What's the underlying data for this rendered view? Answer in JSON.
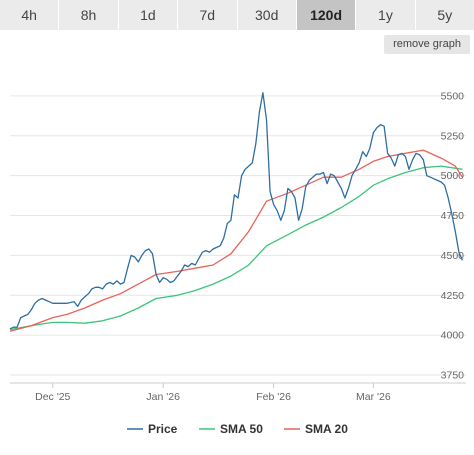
{
  "timeframes": [
    {
      "label": "4h",
      "active": false
    },
    {
      "label": "8h",
      "active": false
    },
    {
      "label": "1d",
      "active": false
    },
    {
      "label": "7d",
      "active": false
    },
    {
      "label": "30d",
      "active": false
    },
    {
      "label": "120d",
      "active": true
    },
    {
      "label": "1y",
      "active": false
    },
    {
      "label": "5y",
      "active": false
    }
  ],
  "remove_graph_label": "remove graph",
  "chart_data": {
    "type": "line",
    "title": "",
    "xlabel": "",
    "ylabel": "",
    "x_range": [
      "2025-11-19",
      "2026-03-27"
    ],
    "ylim": [
      3700,
      5700
    ],
    "y_ticks": [
      3750,
      4000,
      4250,
      4500,
      4750,
      5000,
      5250,
      5500
    ],
    "x_ticks": [
      {
        "date": "2025-12-01",
        "label": "Dec '25"
      },
      {
        "date": "2026-01-01",
        "label": "Jan '26"
      },
      {
        "date": "2026-02-01",
        "label": "Feb '26"
      },
      {
        "date": "2026-03-01",
        "label": "Mar '26"
      }
    ],
    "grid": {
      "horizontal": true,
      "vertical": false
    },
    "legend_position": "bottom-center",
    "series": [
      {
        "name": "Price",
        "color": "#2f6ea0",
        "points": [
          [
            "2025-11-19",
            4040
          ],
          [
            "2025-11-20",
            4050
          ],
          [
            "2025-11-21",
            4050
          ],
          [
            "2025-11-22",
            4110
          ],
          [
            "2025-11-23",
            4120
          ],
          [
            "2025-11-24",
            4130
          ],
          [
            "2025-11-25",
            4160
          ],
          [
            "2025-11-26",
            4200
          ],
          [
            "2025-11-27",
            4220
          ],
          [
            "2025-11-28",
            4230
          ],
          [
            "2025-11-29",
            4220
          ],
          [
            "2025-11-30",
            4210
          ],
          [
            "2025-12-01",
            4200
          ],
          [
            "2025-12-03",
            4200
          ],
          [
            "2025-12-05",
            4200
          ],
          [
            "2025-12-07",
            4210
          ],
          [
            "2025-12-08",
            4180
          ],
          [
            "2025-12-09",
            4220
          ],
          [
            "2025-12-10",
            4240
          ],
          [
            "2025-12-11",
            4260
          ],
          [
            "2025-12-12",
            4290
          ],
          [
            "2025-12-13",
            4300
          ],
          [
            "2025-12-14",
            4300
          ],
          [
            "2025-12-15",
            4290
          ],
          [
            "2025-12-16",
            4320
          ],
          [
            "2025-12-17",
            4330
          ],
          [
            "2025-12-18",
            4320
          ],
          [
            "2025-12-19",
            4340
          ],
          [
            "2025-12-20",
            4320
          ],
          [
            "2025-12-21",
            4330
          ],
          [
            "2025-12-22",
            4420
          ],
          [
            "2025-12-23",
            4500
          ],
          [
            "2025-12-24",
            4490
          ],
          [
            "2025-12-25",
            4460
          ],
          [
            "2025-12-26",
            4500
          ],
          [
            "2025-12-27",
            4530
          ],
          [
            "2025-12-28",
            4540
          ],
          [
            "2025-12-29",
            4510
          ],
          [
            "2025-12-30",
            4380
          ],
          [
            "2025-12-31",
            4330
          ],
          [
            "2026-01-01",
            4360
          ],
          [
            "2026-01-02",
            4350
          ],
          [
            "2026-01-03",
            4330
          ],
          [
            "2026-01-04",
            4340
          ],
          [
            "2026-01-05",
            4370
          ],
          [
            "2026-01-06",
            4400
          ],
          [
            "2026-01-07",
            4440
          ],
          [
            "2026-01-08",
            4430
          ],
          [
            "2026-01-09",
            4450
          ],
          [
            "2026-01-10",
            4440
          ],
          [
            "2026-01-11",
            4480
          ],
          [
            "2026-01-12",
            4520
          ],
          [
            "2026-01-13",
            4530
          ],
          [
            "2026-01-14",
            4520
          ],
          [
            "2026-01-15",
            4540
          ],
          [
            "2026-01-16",
            4550
          ],
          [
            "2026-01-17",
            4560
          ],
          [
            "2026-01-18",
            4610
          ],
          [
            "2026-01-19",
            4700
          ],
          [
            "2026-01-20",
            4720
          ],
          [
            "2026-01-21",
            4880
          ],
          [
            "2026-01-22",
            4860
          ],
          [
            "2026-01-23",
            5000
          ],
          [
            "2026-01-24",
            5040
          ],
          [
            "2026-01-25",
            5060
          ],
          [
            "2026-01-26",
            5080
          ],
          [
            "2026-01-27",
            5200
          ],
          [
            "2026-01-28",
            5400
          ],
          [
            "2026-01-29",
            5520
          ],
          [
            "2026-01-30",
            5350
          ],
          [
            "2026-01-31",
            4900
          ],
          [
            "2026-02-01",
            4820
          ],
          [
            "2026-02-02",
            4780
          ],
          [
            "2026-02-03",
            4720
          ],
          [
            "2026-02-04",
            4780
          ],
          [
            "2026-02-05",
            4920
          ],
          [
            "2026-02-06",
            4900
          ],
          [
            "2026-02-07",
            4860
          ],
          [
            "2026-02-08",
            4720
          ],
          [
            "2026-02-09",
            4790
          ],
          [
            "2026-02-10",
            4930
          ],
          [
            "2026-02-11",
            4970
          ],
          [
            "2026-02-12",
            4990
          ],
          [
            "2026-02-13",
            5010
          ],
          [
            "2026-02-14",
            5010
          ],
          [
            "2026-02-15",
            5020
          ],
          [
            "2026-02-16",
            4950
          ],
          [
            "2026-02-17",
            5010
          ],
          [
            "2026-02-18",
            5000
          ],
          [
            "2026-02-19",
            4960
          ],
          [
            "2026-02-20",
            4920
          ],
          [
            "2026-02-21",
            4860
          ],
          [
            "2026-02-22",
            4920
          ],
          [
            "2026-02-23",
            5000
          ],
          [
            "2026-02-24",
            5040
          ],
          [
            "2026-02-25",
            5080
          ],
          [
            "2026-02-26",
            5150
          ],
          [
            "2026-02-27",
            5120
          ],
          [
            "2026-02-28",
            5170
          ],
          [
            "2026-03-01",
            5270
          ],
          [
            "2026-03-02",
            5300
          ],
          [
            "2026-03-03",
            5320
          ],
          [
            "2026-03-04",
            5310
          ],
          [
            "2026-03-05",
            5140
          ],
          [
            "2026-03-06",
            5110
          ],
          [
            "2026-03-07",
            5060
          ],
          [
            "2026-03-08",
            5130
          ],
          [
            "2026-03-09",
            5140
          ],
          [
            "2026-03-10",
            5120
          ],
          [
            "2026-03-11",
            5040
          ],
          [
            "2026-03-12",
            5100
          ],
          [
            "2026-03-13",
            5140
          ],
          [
            "2026-03-14",
            5130
          ],
          [
            "2026-03-15",
            5100
          ],
          [
            "2026-03-16",
            5000
          ],
          [
            "2026-03-17",
            4990
          ],
          [
            "2026-03-18",
            4980
          ],
          [
            "2026-03-19",
            4970
          ],
          [
            "2026-03-20",
            4960
          ],
          [
            "2026-03-21",
            4940
          ],
          [
            "2026-03-22",
            4860
          ],
          [
            "2026-03-23",
            4760
          ],
          [
            "2026-03-24",
            4650
          ],
          [
            "2026-03-25",
            4520
          ],
          [
            "2026-03-26",
            4470
          ]
        ]
      },
      {
        "name": "SMA 50",
        "color": "#3cc57a",
        "points": [
          [
            "2025-11-19",
            4035
          ],
          [
            "2025-11-25",
            4060
          ],
          [
            "2025-12-01",
            4080
          ],
          [
            "2025-12-05",
            4080
          ],
          [
            "2025-12-10",
            4075
          ],
          [
            "2025-12-15",
            4090
          ],
          [
            "2025-12-20",
            4120
          ],
          [
            "2025-12-25",
            4170
          ],
          [
            "2025-12-30",
            4230
          ],
          [
            "2026-01-05",
            4250
          ],
          [
            "2026-01-10",
            4280
          ],
          [
            "2026-01-15",
            4320
          ],
          [
            "2026-01-20",
            4370
          ],
          [
            "2026-01-25",
            4440
          ],
          [
            "2026-01-30",
            4560
          ],
          [
            "2026-02-05",
            4630
          ],
          [
            "2026-02-10",
            4690
          ],
          [
            "2026-02-15",
            4740
          ],
          [
            "2026-02-20",
            4800
          ],
          [
            "2026-02-25",
            4870
          ],
          [
            "2026-03-01",
            4940
          ],
          [
            "2026-03-05",
            4980
          ],
          [
            "2026-03-10",
            5020
          ],
          [
            "2026-03-15",
            5050
          ],
          [
            "2026-03-20",
            5060
          ],
          [
            "2026-03-26",
            5040
          ]
        ]
      },
      {
        "name": "SMA 20",
        "color": "#e8635a",
        "points": [
          [
            "2025-11-19",
            4025
          ],
          [
            "2025-11-25",
            4060
          ],
          [
            "2025-12-01",
            4110
          ],
          [
            "2025-12-05",
            4130
          ],
          [
            "2025-12-10",
            4170
          ],
          [
            "2025-12-15",
            4220
          ],
          [
            "2025-12-20",
            4260
          ],
          [
            "2025-12-25",
            4320
          ],
          [
            "2025-12-30",
            4380
          ],
          [
            "2026-01-05",
            4400
          ],
          [
            "2026-01-10",
            4420
          ],
          [
            "2026-01-15",
            4440
          ],
          [
            "2026-01-20",
            4510
          ],
          [
            "2026-01-25",
            4650
          ],
          [
            "2026-01-30",
            4840
          ],
          [
            "2026-02-05",
            4890
          ],
          [
            "2026-02-10",
            4940
          ],
          [
            "2026-02-15",
            4990
          ],
          [
            "2026-02-20",
            4990
          ],
          [
            "2026-02-25",
            5040
          ],
          [
            "2026-03-01",
            5090
          ],
          [
            "2026-03-05",
            5120
          ],
          [
            "2026-03-10",
            5140
          ],
          [
            "2026-03-15",
            5160
          ],
          [
            "2026-03-20",
            5110
          ],
          [
            "2026-03-24",
            5060
          ],
          [
            "2026-03-26",
            4990
          ]
        ]
      }
    ]
  }
}
